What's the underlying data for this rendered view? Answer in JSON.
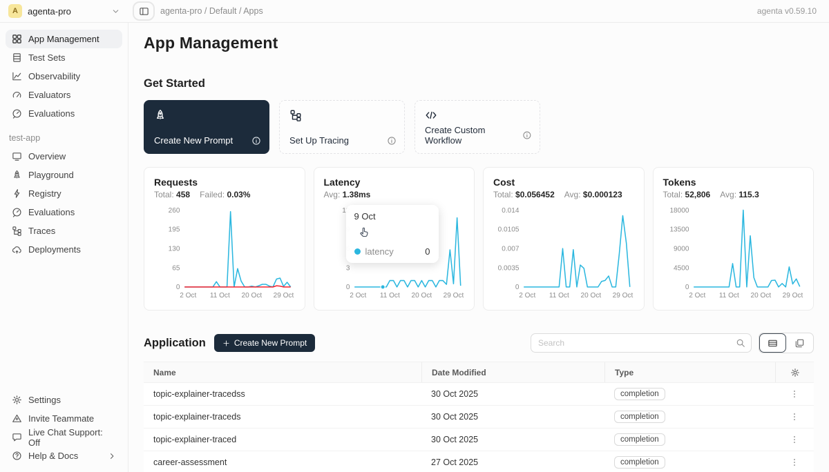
{
  "topbar": {
    "workspace": {
      "initial": "A",
      "name": "agenta-pro"
    },
    "breadcrumb": "agenta-pro / Default / Apps",
    "version": "agenta v0.59.10"
  },
  "sidebar": {
    "main_items": [
      {
        "label": "App Management",
        "icon": "grid",
        "active": true
      },
      {
        "label": "Test Sets",
        "icon": "testsets",
        "active": false
      },
      {
        "label": "Observability",
        "icon": "observability",
        "active": false
      },
      {
        "label": "Evaluators",
        "icon": "gauge",
        "active": false
      },
      {
        "label": "Evaluations",
        "icon": "speed",
        "active": false
      }
    ],
    "section_label": "test-app",
    "app_items": [
      {
        "label": "Overview",
        "icon": "monitor"
      },
      {
        "label": "Playground",
        "icon": "rocket"
      },
      {
        "label": "Registry",
        "icon": "lightning"
      },
      {
        "label": "Evaluations",
        "icon": "speed"
      },
      {
        "label": "Traces",
        "icon": "tree"
      },
      {
        "label": "Deployments",
        "icon": "cloud"
      }
    ],
    "footer_items": [
      {
        "label": "Settings",
        "icon": "gear",
        "chevron": false
      },
      {
        "label": "Invite Teammate",
        "icon": "invite",
        "chevron": false
      },
      {
        "label": "Live Chat Support: Off",
        "icon": "chat",
        "chevron": false
      },
      {
        "label": "Help & Docs",
        "icon": "help",
        "chevron": true
      }
    ]
  },
  "main": {
    "title": "App Management",
    "get_started": {
      "heading": "Get Started",
      "cards": [
        {
          "label": "Create New Prompt",
          "icon": "rocket",
          "dark": true
        },
        {
          "label": "Set Up Tracing",
          "icon": "tree",
          "dark": false
        },
        {
          "label": "Create Custom Workflow",
          "icon": "code",
          "dark": false
        }
      ]
    },
    "application": {
      "heading": "Application",
      "create_button": "Create New Prompt",
      "search_placeholder": "Search",
      "table": {
        "columns": [
          "Name",
          "Date Modified",
          "Type"
        ],
        "rows": [
          {
            "name": "topic-explainer-tracedss",
            "date": "30 Oct 2025",
            "type": "completion"
          },
          {
            "name": "topic-explainer-traceds",
            "date": "30 Oct 2025",
            "type": "completion"
          },
          {
            "name": "topic-explainer-traced",
            "date": "30 Oct 2025",
            "type": "completion"
          },
          {
            "name": "career-assessment",
            "date": "27 Oct 2025",
            "type": "completion"
          }
        ]
      }
    }
  },
  "chart_data": [
    {
      "type": "line",
      "title": "Requests",
      "stats": [
        {
          "label": "Total:",
          "value": "458"
        },
        {
          "label": "Failed:",
          "value": "0.03%"
        }
      ],
      "x_days": 31,
      "xticks": [
        {
          "day": 2,
          "label": "2 Oct"
        },
        {
          "day": 11,
          "label": "11 Oct"
        },
        {
          "day": 20,
          "label": "20 Oct"
        },
        {
          "day": 29,
          "label": "29 Oct"
        }
      ],
      "ylim": [
        0,
        260
      ],
      "yticks": [
        {
          "v": 0,
          "label": "0"
        },
        {
          "v": 65,
          "label": "65"
        },
        {
          "v": 130,
          "label": "130"
        },
        {
          "v": 195,
          "label": "195"
        },
        {
          "v": 260,
          "label": "260"
        }
      ],
      "series": [
        {
          "name": "requests",
          "color": "#2bb7df",
          "values": [
            0,
            0,
            0,
            0,
            0,
            0,
            0,
            0,
            0,
            18,
            0,
            0,
            0,
            255,
            0,
            62,
            20,
            0,
            0,
            3,
            0,
            4,
            9,
            9,
            3,
            0,
            27,
            30,
            2,
            16,
            0
          ]
        },
        {
          "name": "failed",
          "color": "#f5222d",
          "values": [
            0,
            0,
            0,
            0,
            0,
            0,
            0,
            0,
            0,
            0,
            0,
            0,
            0,
            0,
            0,
            0,
            0,
            0,
            0,
            0,
            0,
            0,
            0,
            0,
            0,
            0,
            4,
            3,
            0,
            0,
            0
          ]
        }
      ]
    },
    {
      "type": "line",
      "title": "Latency",
      "stats": [
        {
          "label": "Avg:",
          "value": "1.38ms"
        }
      ],
      "x_days": 31,
      "xticks": [
        {
          "day": 2,
          "label": "2 Oct"
        },
        {
          "day": 11,
          "label": "11 Oct"
        },
        {
          "day": 20,
          "label": "20 Oct"
        },
        {
          "day": 29,
          "label": "29 Oct"
        }
      ],
      "ylim": [
        0,
        12
      ],
      "yticks": [
        {
          "v": 0,
          "label": "0"
        },
        {
          "v": 3,
          "label": "3"
        },
        {
          "v": 6,
          "label": "6"
        },
        {
          "v": 9,
          "label": "9"
        },
        {
          "v": 12,
          "label": "12"
        }
      ],
      "series": [
        {
          "name": "latency",
          "color": "#2bb7df",
          "values": [
            0,
            0,
            0,
            0,
            0,
            0,
            0,
            0,
            0,
            0,
            1,
            1,
            0,
            1,
            1,
            0,
            1,
            1,
            0,
            1,
            0,
            1,
            1,
            0,
            1,
            1,
            0.4,
            5.8,
            0.5,
            10.8,
            0.2
          ]
        }
      ],
      "marker": {
        "day": 9,
        "value": 0
      },
      "tooltip": {
        "date": "9 Oct",
        "series": "latency",
        "value": "0"
      }
    },
    {
      "type": "line",
      "title": "Cost",
      "stats": [
        {
          "label": "Total:",
          "value": "$0.056452"
        },
        {
          "label": "Avg:",
          "value": "$0.000123"
        }
      ],
      "x_days": 31,
      "xticks": [
        {
          "day": 2,
          "label": "2 Oct"
        },
        {
          "day": 11,
          "label": "11 Oct"
        },
        {
          "day": 20,
          "label": "20 Oct"
        },
        {
          "day": 29,
          "label": "29 Oct"
        }
      ],
      "ylim": [
        0,
        0.014
      ],
      "yticks": [
        {
          "v": 0,
          "label": "0"
        },
        {
          "v": 0.0035,
          "label": "0.0035"
        },
        {
          "v": 0.007,
          "label": "0.007"
        },
        {
          "v": 0.0105,
          "label": "0.0105"
        },
        {
          "v": 0.014,
          "label": "0.014"
        }
      ],
      "series": [
        {
          "name": "cost",
          "color": "#2bb7df",
          "values": [
            0,
            0,
            0,
            0,
            0,
            0,
            0,
            0,
            0,
            0,
            0,
            0.007,
            0,
            0,
            0.0068,
            0,
            0.004,
            0.0034,
            0,
            0,
            0,
            0,
            0.001,
            0.0012,
            0.002,
            0,
            0,
            0.006,
            0.013,
            0.008,
            0
          ]
        }
      ]
    },
    {
      "type": "line",
      "title": "Tokens",
      "stats": [
        {
          "label": "Total:",
          "value": "52,806"
        },
        {
          "label": "Avg:",
          "value": "115.3"
        }
      ],
      "x_days": 31,
      "xticks": [
        {
          "day": 2,
          "label": "2 Oct"
        },
        {
          "day": 11,
          "label": "11 Oct"
        },
        {
          "day": 20,
          "label": "20 Oct"
        },
        {
          "day": 29,
          "label": "29 Oct"
        }
      ],
      "ylim": [
        0,
        18000
      ],
      "yticks": [
        {
          "v": 0,
          "label": "0"
        },
        {
          "v": 4500,
          "label": "4500"
        },
        {
          "v": 9000,
          "label": "9000"
        },
        {
          "v": 13500,
          "label": "13500"
        },
        {
          "v": 18000,
          "label": "18000"
        }
      ],
      "series": [
        {
          "name": "tokens",
          "color": "#2bb7df",
          "values": [
            0,
            0,
            0,
            0,
            0,
            0,
            0,
            0,
            0,
            0,
            0,
            5500,
            0,
            0,
            18000,
            0,
            12000,
            2200,
            0,
            0,
            0,
            0,
            1500,
            1600,
            0,
            800,
            0,
            4700,
            700,
            1900,
            100
          ]
        }
      ]
    }
  ],
  "colors": {
    "accent": "#2bb7df",
    "failed": "#f5222d",
    "dark": "#1c2b3b",
    "avatar_bg": "#f7e69b"
  }
}
